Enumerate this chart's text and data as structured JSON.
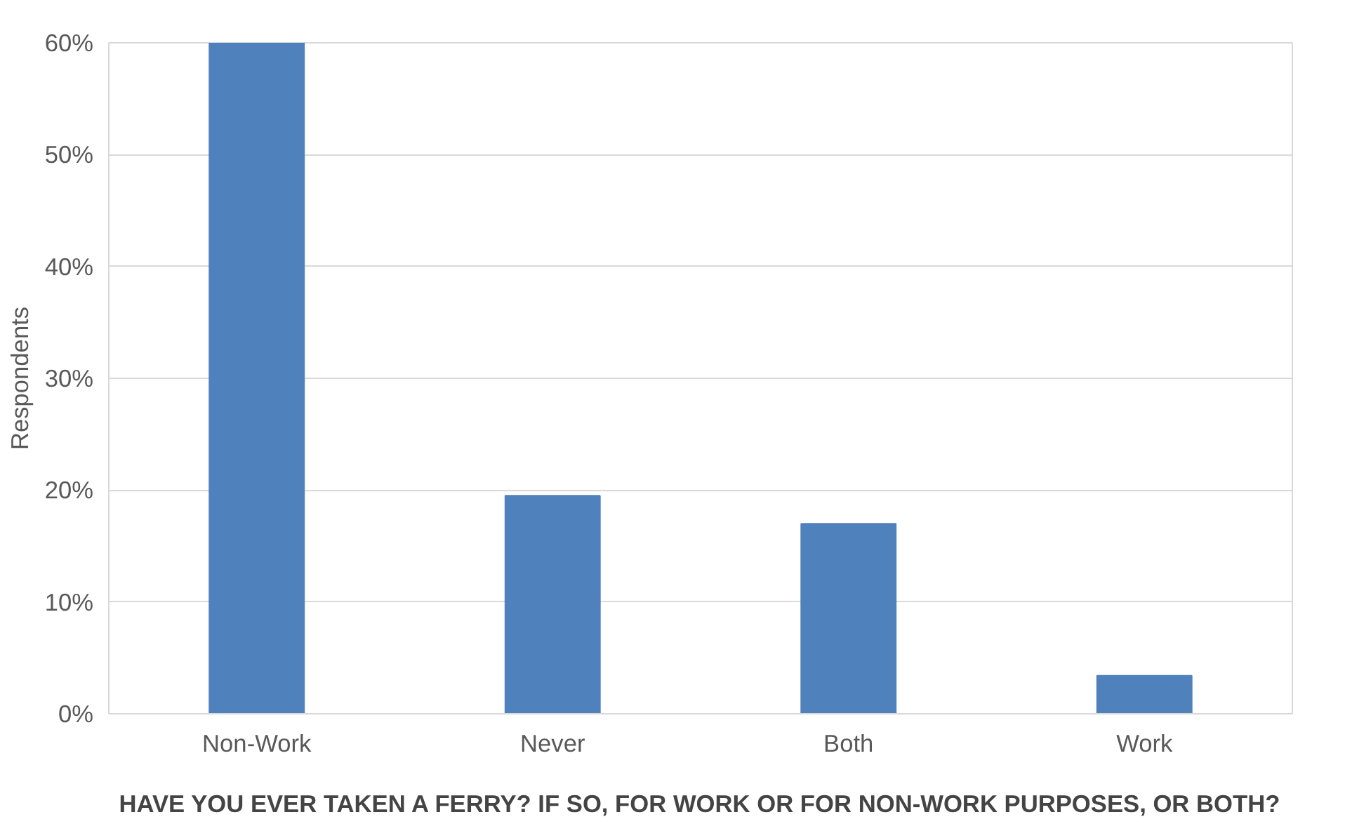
{
  "chart_data": {
    "type": "bar",
    "xlabel": "HAVE YOU EVER TAKEN A FERRY? IF SO, FOR WORK OR FOR NON-WORK PURPOSES, OR BOTH?",
    "ylabel": "Respondents",
    "categories": [
      "Non-Work",
      "Never",
      "Both",
      "Work"
    ],
    "values": [
      0.6,
      0.195,
      0.17,
      0.034
    ],
    "color": "#4f81bd",
    "ylim": [
      0,
      0.6
    ],
    "yticks": [
      {
        "value": 0,
        "label": "0%"
      },
      {
        "value": 0.1,
        "label": "10%"
      },
      {
        "value": 0.2,
        "label": "20%"
      },
      {
        "value": 0.3,
        "label": "30%"
      },
      {
        "value": 0.4,
        "label": "40%"
      },
      {
        "value": 0.5,
        "label": "50%"
      },
      {
        "value": 0.6,
        "label": "60%"
      }
    ],
    "grid": "y"
  }
}
